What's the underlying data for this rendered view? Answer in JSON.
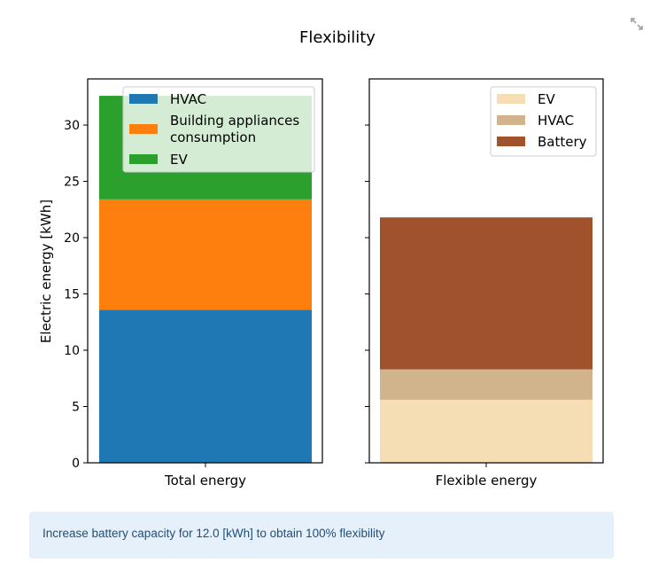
{
  "toolbar": {
    "expand_icon": "expand-arrows-icon"
  },
  "info": {
    "message": "Increase battery capacity for 12.0 [kWh] to obtain 100% flexibility"
  },
  "chart_data": [
    {
      "type": "bar",
      "stacked": true,
      "title": "Flexibility",
      "ylabel": "Electric energy [kWh]",
      "categories": [
        "Total energy"
      ],
      "ylim": [
        0,
        34.1
      ],
      "yticks": [
        0,
        5,
        10,
        15,
        20,
        25,
        30
      ],
      "legend_position": "top-right",
      "series": [
        {
          "name": "HVAC",
          "values": [
            13.6
          ],
          "color": "#1f77b4"
        },
        {
          "name": "Building appliances consumption",
          "legend_lines": [
            "Building appliances",
            "consumption"
          ],
          "values": [
            9.8
          ],
          "color": "#ff7f0e"
        },
        {
          "name": "EV",
          "values": [
            9.2
          ],
          "color": "#2ca02c"
        }
      ]
    },
    {
      "type": "bar",
      "stacked": true,
      "categories": [
        "Flexible energy"
      ],
      "ylim": [
        0,
        34.1
      ],
      "shared_y": true,
      "legend_position": "top-right",
      "series": [
        {
          "name": "EV",
          "values": [
            5.6
          ],
          "color": "#f5deb3"
        },
        {
          "name": "HVAC",
          "values": [
            2.7
          ],
          "color": "#d2b48c"
        },
        {
          "name": "Battery",
          "values": [
            13.5
          ],
          "color": "#a0522d"
        }
      ]
    }
  ]
}
